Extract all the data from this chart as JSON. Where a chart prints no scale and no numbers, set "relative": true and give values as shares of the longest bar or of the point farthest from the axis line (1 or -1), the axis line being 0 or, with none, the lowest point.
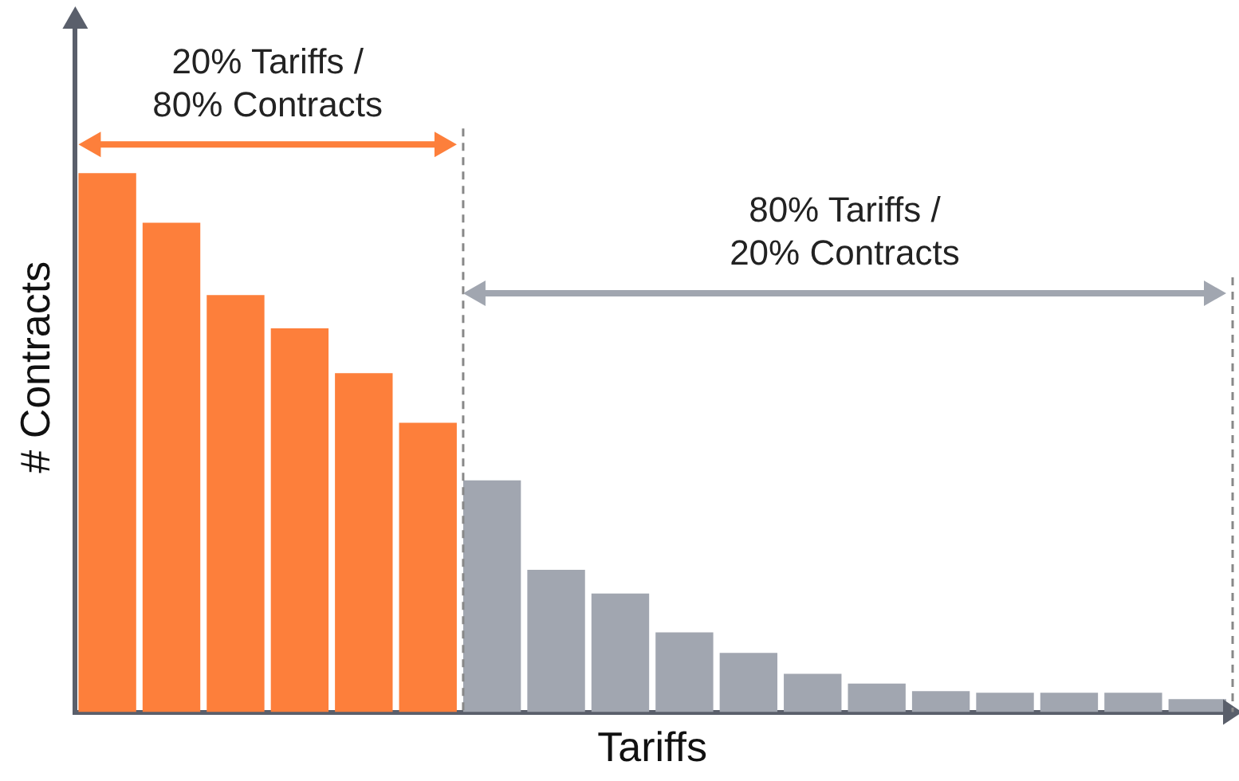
{
  "chart_data": {
    "type": "bar",
    "relative": true,
    "xlabel": "Tariffs",
    "ylabel": "# Contracts",
    "categories": [
      null,
      null,
      null,
      null,
      null,
      null,
      null,
      null,
      null,
      null,
      null,
      null,
      null,
      null,
      null,
      null,
      null,
      null
    ],
    "values": [
      1,
      0.908,
      0.774,
      0.712,
      0.629,
      0.537,
      0.43,
      0.264,
      0.22,
      0.148,
      0.11,
      0.071,
      0.053,
      0.039,
      0.036,
      0.036,
      0.036,
      0.024
    ],
    "colors": [
      "#fd7f3b",
      "#fd7f3b",
      "#fd7f3b",
      "#fd7f3b",
      "#fd7f3b",
      "#fd7f3b",
      "#a1a6b0",
      "#a1a6b0",
      "#a1a6b0",
      "#a1a6b0",
      "#a1a6b0",
      "#a1a6b0",
      "#a1a6b0",
      "#a1a6b0",
      "#a1a6b0",
      "#a1a6b0",
      "#a1a6b0",
      "#a1a6b0"
    ],
    "annotations": [
      "20% Tariffs /\n80% Contracts",
      "80% Tariffs /\n20% Contracts"
    ],
    "grid": false,
    "legend": false
  }
}
